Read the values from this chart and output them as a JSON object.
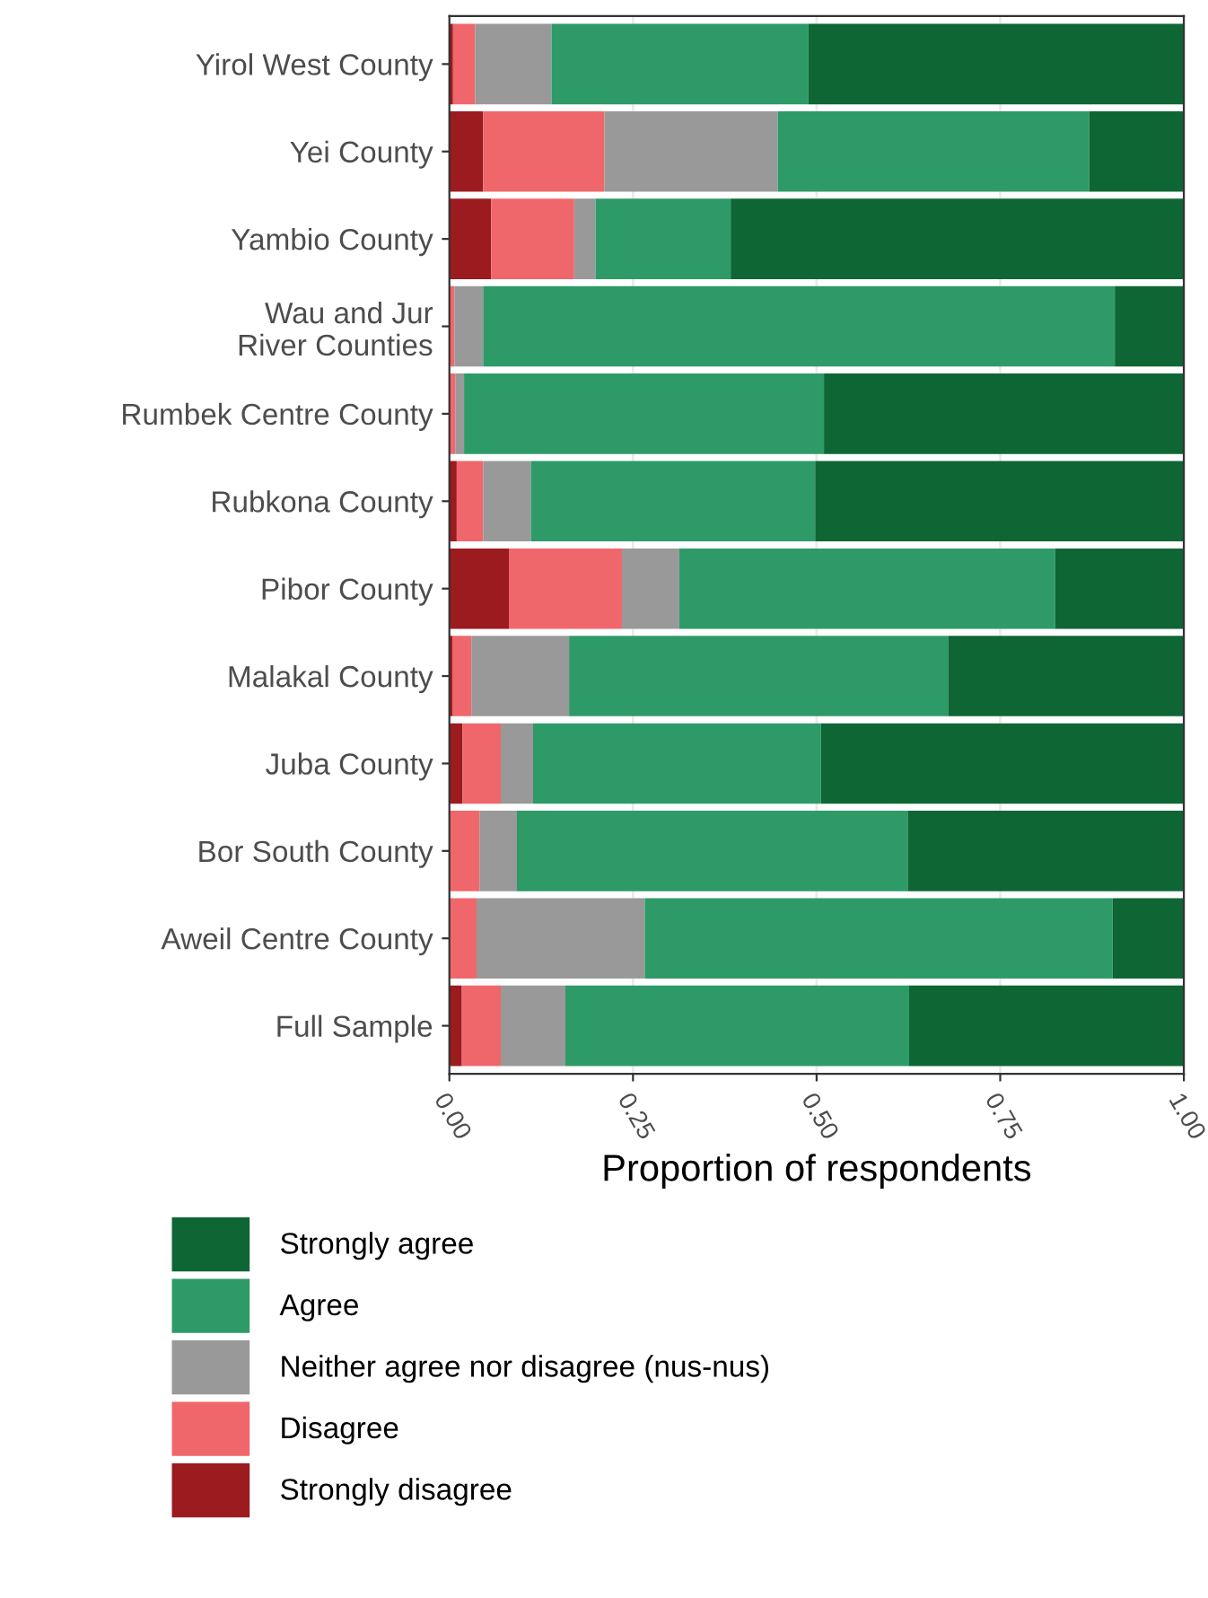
{
  "chart_data": {
    "type": "bar",
    "orientation": "horizontal",
    "stacked": true,
    "xlabel": "Proportion of respondents",
    "categories": [
      "Yirol West County",
      "Yei County",
      "Yambio County",
      "Wau and Jur\nRiver Counties",
      "Rumbek Centre County",
      "Rubkona County",
      "Pibor County",
      "Malakal County",
      "Juba County",
      "Bor South County",
      "Aweil Centre County",
      "Full Sample"
    ],
    "series": [
      {
        "name": "Strongly disagree",
        "color": "#9b1b1f",
        "values": [
          0.005,
          0.046,
          0.057,
          0,
          0,
          0.01,
          0.081,
          0.004,
          0.018,
          0,
          0,
          0.017
        ]
      },
      {
        "name": "Disagree",
        "color": "#f0676b",
        "values": [
          0.03,
          0.165,
          0.113,
          0.007,
          0.008,
          0.036,
          0.154,
          0.026,
          0.052,
          0.041,
          0.037,
          0.053
        ]
      },
      {
        "name": "Neither agree nor disagree (nus-nus)",
        "color": "#999999",
        "values": [
          0.104,
          0.236,
          0.029,
          0.039,
          0.012,
          0.065,
          0.078,
          0.133,
          0.044,
          0.051,
          0.229,
          0.088
        ]
      },
      {
        "name": "Agree",
        "color": "#2e9a68",
        "values": [
          0.35,
          0.424,
          0.184,
          0.86,
          0.49,
          0.387,
          0.512,
          0.516,
          0.392,
          0.532,
          0.637,
          0.468
        ]
      },
      {
        "name": "Strongly agree",
        "color": "#0e6635",
        "values": [
          0.513,
          0.129,
          0.617,
          0.094,
          0.49,
          0.502,
          0.175,
          0.321,
          0.494,
          0.376,
          0.097,
          0.374
        ]
      }
    ],
    "xlim": [
      0,
      1
    ],
    "xticks": [
      {
        "value": 0,
        "label": "0.00"
      },
      {
        "value": 0.25,
        "label": "0.25"
      },
      {
        "value": 0.5,
        "label": "0.50"
      },
      {
        "value": 0.75,
        "label": "0.75"
      },
      {
        "value": 1,
        "label": "1.00"
      }
    ],
    "grid": "x",
    "legend": "bottom"
  }
}
